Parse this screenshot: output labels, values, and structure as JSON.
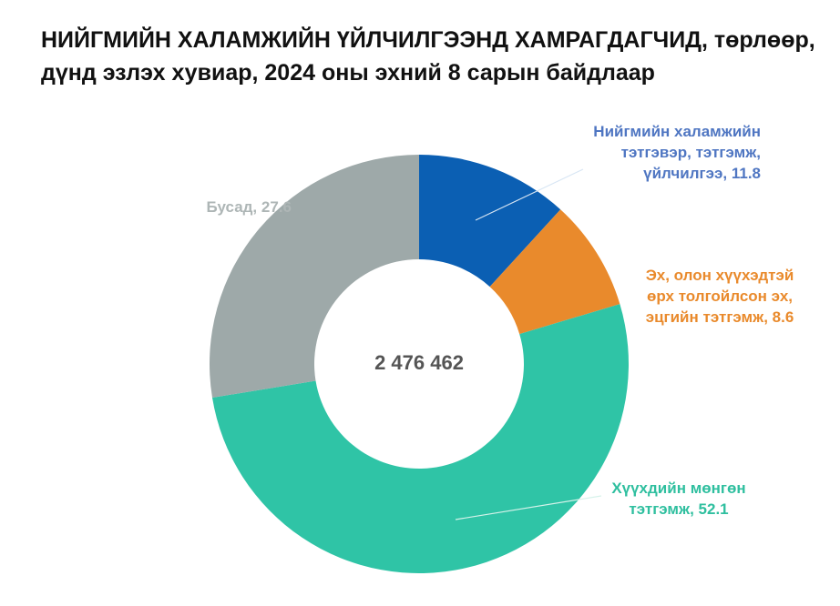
{
  "chart_data": {
    "type": "donut",
    "title": "НИЙГМИЙН ХАЛАМЖИЙН ҮЙЛЧИЛГЭЭНД ХАМРАГДАГЧИД,",
    "subtitle": "төрлөөр, дүнд эзлэх хувиар, 2024 оны эхний 8 сарын байдлаар",
    "center_label": "2 476 462",
    "categories": [
      "Нийгмийн халамжийн тэтгэвэр, тэтгэмж, үйлчилгээ,",
      "Эх, олон хүүхэдтэй өрх толгойлсон эх, эцгийн тэтгэмж,",
      "Хүүхдийн мөнгөн тэтгэмж,",
      "Бусад,"
    ],
    "values": [
      11.8,
      8.6,
      52.1,
      27.6
    ],
    "colors": [
      "#0b5fb3",
      "#e98a2c",
      "#2fc4a6",
      "#9ea9a9"
    ],
    "label_colors": [
      "#4f76c2",
      "#e98a2c",
      "#2fbf9f",
      "#aeb6b6"
    ]
  }
}
